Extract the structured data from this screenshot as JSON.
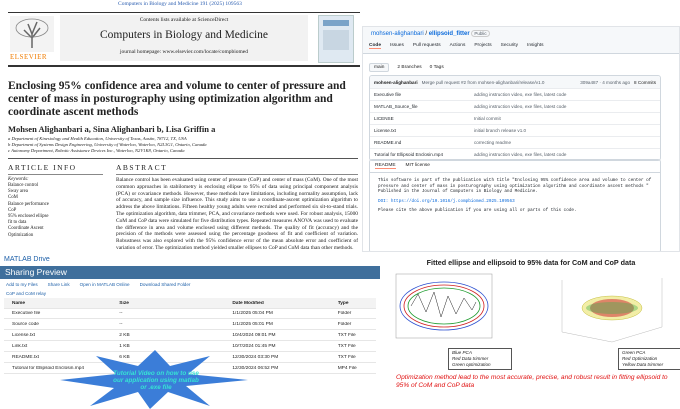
{
  "paper": {
    "journal_line": "Computers in Biology and Medicine 191 (2025) 109563",
    "contents": "Contents lists available at ScienceDirect",
    "journal": "Computers in Biology and Medicine",
    "homepage": "journal homepage: www.elsevier.com/locate/compbiomed",
    "publisher": "ELSEVIER",
    "title": "Enclosing 95% confidence area and volume to center of pressure and center of mass in posturography using optimization algorithm and coordinate ascent methods",
    "authors": "Mohsen Alighanbari a, Sina Alighanbari b, Lisa Griffin a",
    "affiliations": [
      "a Department of Kinesiology and Health Education, University of Texas, Austin, 78712, TX, USA",
      "b Department of Systems Design Engineering, University of Waterloo, Waterloo, N2L3G1, Ontario, Canada",
      "c Autonomy Department, Robotic Assistance Devices Inc., Waterloo, N2V1K8, Ontario, Canada"
    ],
    "article_info": "ARTICLE INFO",
    "keywords_title": "Keywords:",
    "keywords": [
      "Balance control",
      "Sway area",
      "CoM",
      "Balance performance",
      "CoP",
      "95% enclosed ellipse",
      "fit to data",
      "Coordinate Ascent",
      "Optimization"
    ],
    "abstract_title": "ABSTRACT",
    "abstract": "Balance control has been evaluated using center of pressure (CoP) and center of mass (CoM). One of the most common approaches in stabilometry is enclosing ellipse to 95% of data using principal component analysis (PCA) or covariance methods. However, these methods have limitations, including normality assumption, lack of accuracy, and sample size influence. This study aims to use a coordinate-ascent optimization algorithm to address the above limitations. Fifteen healthy young adults were recruited and performed six sit-to-stand trials. The optimization algorithm, data trimmer, PCA, and covariance methods were used. For robust analysis, 15000 CoM and CoP data were simulated for five distribution types. Repeated measures ANOVA was used to evaluate the difference in area and volume enclosed using different methods. The quality of fit (accuracy) and the precision of the methods were assessed using the percentage goodness of fit and coefficient of variation. Robustness was also explored with the 95% confidence error of the mean absolute error and coefficient of variation of error. The optimization method yielded smaller ellipses to CoP and CoM data than other methods."
  },
  "github": {
    "repo_owner": "mohsen-alighanbari",
    "repo_name": "ellipsoid_fitter",
    "visibility": "Public",
    "tabs": [
      "Code",
      "Issues",
      "Pull requests",
      "Actions",
      "Projects",
      "Security",
      "Insights"
    ],
    "branch": "main",
    "branches": "2 Branches",
    "tags": "0 Tags",
    "commit_user": "mohsen-alighanbari",
    "commit_message": "Merge pull request #2 from mohsen-alighanbari/release/v1.0",
    "commit_meta": "309a487 · 4 months ago",
    "commits": "8 Commits",
    "files": [
      {
        "name": "Executive file",
        "message": "adding instruction video, exe files, latest code"
      },
      {
        "name": "MATLAB_Source_file",
        "message": "adding instruction video, exe files, latest code"
      },
      {
        "name": "LICENSE",
        "message": "Initial commit"
      },
      {
        "name": "License.txt",
        "message": "initial branch release v1.0"
      },
      {
        "name": "README.md",
        "message": "correcting readme"
      },
      {
        "name": "Tutorial for Ellipsoid Enclosin.mp4",
        "message": "adding instruction video, exe files, latest code"
      }
    ],
    "readme_tabs": [
      "README",
      "MIT license"
    ],
    "readme": [
      "This software is part of the publication with title \"Enclosing 95% confidence area and volume to center of pressure and center of mass in posturography using optimization algorithm and coordinate ascent methods \" Published in the Journal of Computers in Biology and Medicine.",
      "DOI: https://doi.org/10.1016/j.compbiomed.2025.109563",
      "Please cite the above publication if you are using all or parts of this code."
    ]
  },
  "drive": {
    "brand": "MATLAB Drive",
    "title": "Sharing Preview",
    "actions": [
      "Add to my Files",
      "Share Link",
      "Open in MATLAB Online",
      "Download Shared Folder"
    ],
    "breadcrumb": "CoP and CoM relay",
    "columns": [
      "Name",
      "Size",
      "Date Modified",
      "Type"
    ],
    "rows": [
      [
        "Executive file",
        "--",
        "1/1/2025 05:04 PM",
        "Folder"
      ],
      [
        "Source code",
        "--",
        "1/1/2025 05:01 PM",
        "Folder"
      ],
      [
        "License.txt",
        "2 KB",
        "10/4/2024 09:01 PM",
        "TXT File"
      ],
      [
        "Link.txt",
        "1 KB",
        "10/7/2024 01:45 PM",
        "TXT File"
      ],
      [
        "README.txt",
        "6 KB",
        "12/30/2024 03:30 PM",
        "TXT File"
      ],
      [
        "Tutorial for Ellipsoid Enclosin.mp4",
        "43.33 MB",
        "12/30/2024 06:52 PM",
        "MP4 File"
      ]
    ],
    "callout": "Tutorial Video on how to use our application using matlab or .exe file"
  },
  "results": {
    "title": "Fitted ellipse and ellipsoid to 95% data for CoM and CoP data",
    "legend_2d": [
      "Blue PCA",
      "Red Data trimmer",
      "Green optimization"
    ],
    "legend_3d": [
      "Green PCA",
      "Red Optimization",
      "Yellow Data trimmer"
    ],
    "caption": "Optimization method lead to the most accurate, precise, and robust result in fitting ellipsoid to 95% of CoM and CoP data"
  }
}
